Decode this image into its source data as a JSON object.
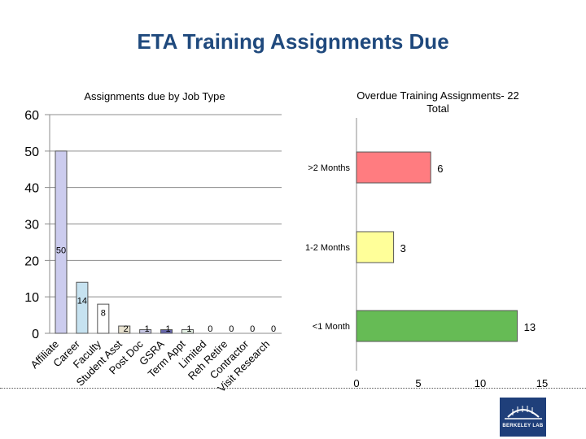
{
  "slide_title": "ETA Training Assignments Due",
  "logo_text": "BERKELEY LAB",
  "colors": {
    "title": "#1f497d",
    "job_bar_fill": "#ccccee",
    "job_bar_palette": [
      "#ccccee",
      "#c6e2f0",
      "#ffffff",
      "#e9e3d0",
      "#c9c9e6",
      "#6666aa",
      "#e6f2e6",
      "#ffffff",
      "#ffffff",
      "#ffffff",
      "#ffffff"
    ],
    "overdue_colors": [
      "#ff7c80",
      "#ffff99",
      "#66bb55"
    ]
  },
  "chart_data": [
    {
      "type": "bar",
      "title": "Assignments due by Job Type",
      "categories": [
        "Affiliate",
        "Career",
        "Faculty",
        "Student Asst",
        "Post Doc",
        "GSRA",
        "Term Appt",
        "Limited",
        "Reh Retire",
        "Contractor",
        "Visit Research"
      ],
      "values": [
        50,
        14,
        8,
        2,
        1,
        1,
        1,
        0,
        0,
        0,
        0
      ],
      "ylim": [
        0,
        60
      ],
      "yticks": [
        0,
        10,
        20,
        30,
        40,
        50,
        60
      ],
      "grid": true,
      "data_labels": true
    },
    {
      "type": "bar",
      "orientation": "horizontal",
      "title": "Overdue Training Assignments- 22 Total",
      "categories": [
        ">2 Months",
        "1-2 Months",
        "<1 Month"
      ],
      "values": [
        6,
        3,
        13
      ],
      "xlim": [
        0,
        15
      ],
      "xticks": [
        0,
        5,
        10,
        15
      ],
      "grid": false,
      "data_labels": true
    }
  ]
}
